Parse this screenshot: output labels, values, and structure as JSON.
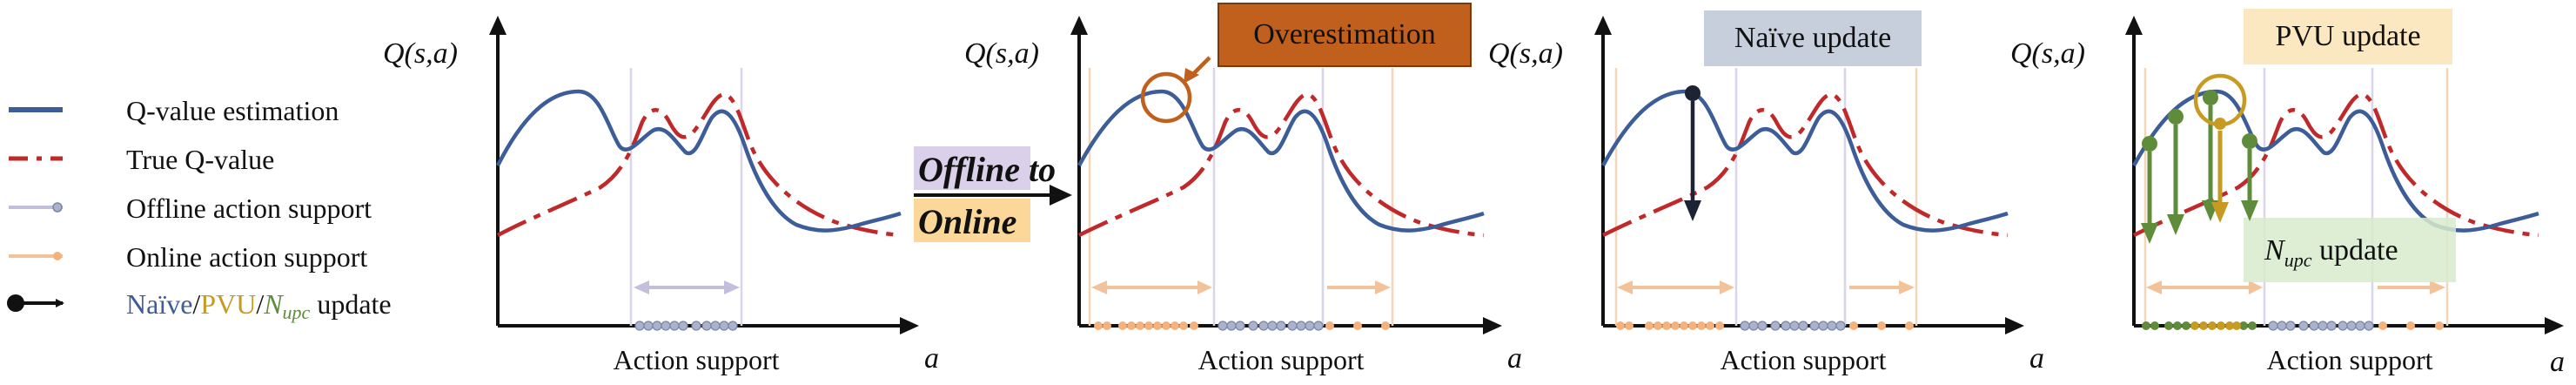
{
  "legend": {
    "items": [
      {
        "label": "Q-value estimation",
        "color": "#3d5d98",
        "style": "solid-line"
      },
      {
        "label": "True Q-value",
        "color": "#c0282a",
        "style": "dashed-line"
      },
      {
        "label": "Offline action support",
        "color": "#c2bedc",
        "style": "line-with-dots"
      },
      {
        "label": "Online action support",
        "color": "#f2c29b",
        "style": "line-with-dots"
      }
    ],
    "update": {
      "naive": "Naïve",
      "sep1": "/",
      "pvu": "PVU",
      "sep2": "/",
      "nupc_base": "N",
      "nupc_sub": "upc",
      "suffix": " update"
    }
  },
  "axis": {
    "y_label": "Q(s,a)",
    "x_label": "a",
    "support_label": "Action support"
  },
  "transition": {
    "line1": "Offline to",
    "line2": "Online"
  },
  "panels": [
    {
      "id": "offline"
    },
    {
      "id": "online",
      "callout": "Overestimation"
    },
    {
      "id": "naive",
      "callout": "Naïve update"
    },
    {
      "id": "pvu",
      "callout": "PVU update",
      "callout2_base": "N",
      "callout2_sub": "upc",
      "callout2_suffix": " update"
    }
  ],
  "colors": {
    "estimate": "#3d5d98",
    "true": "#c0282a",
    "offline": "#c2bedc",
    "online": "#f2c29b",
    "naive_arrow": "#1c2333",
    "pvu": "#c79a22",
    "nupc": "#5f8c3a",
    "overestimation_box": "#c0601c",
    "naive_box": "#c7cfdc",
    "pvu_box": "#fbe8c0",
    "nupc_box": "#d8ebcd"
  }
}
